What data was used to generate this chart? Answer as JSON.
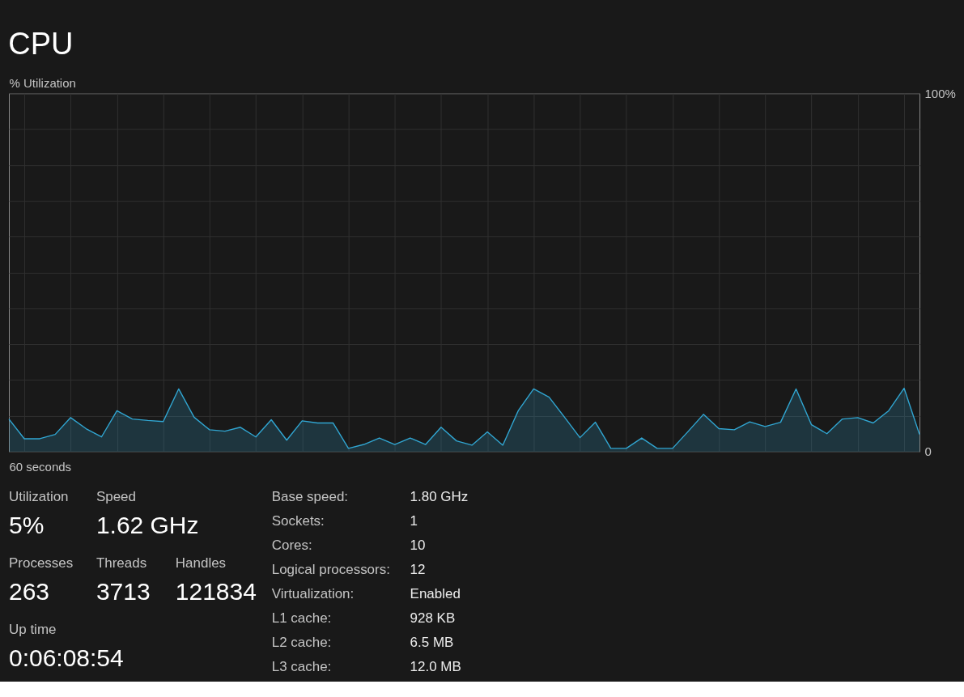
{
  "chart_data": [
    {
      "type": "area",
      "title": "CPU",
      "ylabel": "% Utilization",
      "xlabel": "60 seconds",
      "categories": [
        null,
        null,
        null,
        null,
        null,
        null,
        null,
        null,
        null,
        null,
        null,
        null,
        null,
        null,
        null,
        null,
        null,
        null,
        null,
        null,
        null,
        null,
        null,
        null,
        null,
        null,
        null,
        null,
        null,
        null,
        null,
        null,
        null,
        null,
        null,
        null,
        null,
        null,
        null,
        null,
        null,
        null,
        null,
        null,
        null,
        null,
        null,
        null,
        null,
        null,
        null,
        null,
        null,
        null,
        null,
        null,
        null,
        null,
        null,
        null
      ],
      "series": [
        {
          "color": "#31a6d2",
          "values": [
            9.1,
            3.6,
            3.6,
            4.8,
            9.5,
            6.4,
            4.1,
            11.4,
            9.1,
            8.7,
            8.4,
            17.5,
            9.6,
            6.1,
            5.7,
            6.8,
            4.1,
            8.9,
            3.2,
            8.6,
            8.0,
            8.0,
            0.9,
            2.0,
            3.8,
            2.0,
            3.8,
            2.0,
            6.8,
            3.0,
            1.8,
            5.5,
            1.8,
            11.4,
            17.5,
            15.2,
            9.6,
            3.9,
            8.2,
            0.9,
            0.9,
            3.8,
            0.9,
            0.9,
            5.6,
            10.4,
            6.4,
            6.1,
            8.3,
            7.0,
            8.2,
            17.5,
            7.5,
            5.0,
            9.1,
            9.5,
            8.0,
            11.4,
            17.7,
            4.8
          ]
        }
      ],
      "ylim": [
        0,
        100
      ],
      "yticks": [
        0,
        {
          "value": 10,
          "label": null
        },
        {
          "value": 20,
          "label": null
        },
        {
          "value": 30,
          "label": null
        },
        {
          "value": 40,
          "label": null
        },
        {
          "value": 50,
          "label": null
        },
        {
          "value": 60,
          "label": null
        },
        {
          "value": 70,
          "label": null
        },
        {
          "value": 80,
          "label": null
        },
        {
          "value": 90,
          "label": null
        },
        {
          "value": 100,
          "label": "100%"
        }
      ],
      "grid": true
    },
    {
      "type": "other",
      "annotations": [
        "Utilization",
        "5%",
        "Speed",
        "1.62 GHz",
        "Processes",
        "263",
        "Threads",
        "3713",
        "Handles",
        "121834",
        "Up time",
        "0:06:08:54",
        "Base speed:",
        "1.80 GHz",
        "Sockets:",
        "1",
        "Cores:",
        "10",
        "Logical processors:",
        "12",
        "Virtualization:",
        "Enabled",
        "L1 cache:",
        "928 KB",
        "L2 cache:",
        "6.5 MB",
        "L3 cache:",
        "12.0 MB"
      ]
    }
  ]
}
